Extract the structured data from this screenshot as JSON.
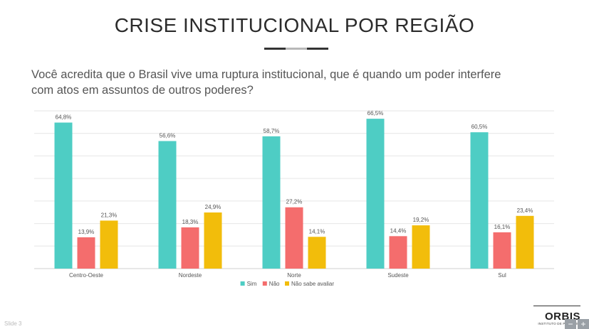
{
  "title": "CRISE INSTITUCIONAL POR REGIÃO",
  "question": "Você acredita que o Brasil vive uma ruptura institucional, que é quando um poder interfere com atos em assuntos de outros poderes?",
  "chart_data": {
    "type": "bar",
    "categories": [
      "Centro-Oeste",
      "Nordeste",
      "Norte",
      "Sudeste",
      "Sul"
    ],
    "series": [
      {
        "name": "Sim",
        "color": "#4ecdc4",
        "values": [
          64.8,
          56.6,
          58.7,
          66.5,
          60.5
        ],
        "labels": [
          "64,8%",
          "56,6%",
          "58,7%",
          "66,5%",
          "60,5%"
        ]
      },
      {
        "name": "Não",
        "color": "#f46d6d",
        "values": [
          13.9,
          18.3,
          27.2,
          14.4,
          16.1
        ],
        "labels": [
          "13,9%",
          "18,3%",
          "27,2%",
          "14,4%",
          "16,1%"
        ]
      },
      {
        "name": "Não sabe avaliar",
        "color": "#f2bd0b",
        "values": [
          21.3,
          24.9,
          14.1,
          19.2,
          23.4
        ],
        "labels": [
          "21,3%",
          "24,9%",
          "14,1%",
          "19,2%",
          "23,4%"
        ]
      }
    ],
    "ylim": [
      0,
      70
    ],
    "grid": true,
    "legend": "bottom-center"
  },
  "brand": {
    "name": "ORBIS",
    "subtitle": "INSTITUTO DE PESQUISA"
  },
  "slide_number": "Slide 3",
  "controls": {
    "zoom_out": "−",
    "zoom_in": "+"
  }
}
